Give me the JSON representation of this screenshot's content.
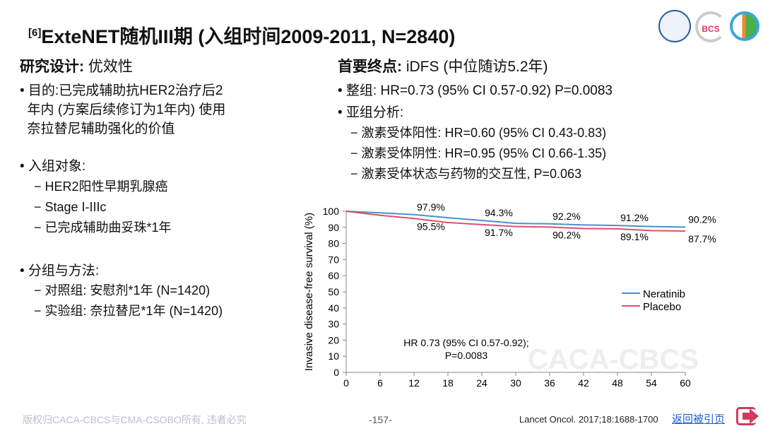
{
  "title": {
    "sup": "[6]",
    "text": "ExteNET随机III期 (入组时间2009-2011, N=2840)"
  },
  "left": {
    "heading_bold": "研究设计:",
    "heading_rest": " 优效性",
    "purpose": [
      "• 目的:已完成辅助抗HER2治疗后2",
      "  年内 (方案后续修订为1年内) 使用",
      "  奈拉替尼辅助强化的价值"
    ],
    "subjects": "• 入组对象:",
    "subjects_items": [
      "− HER2阳性早期乳腺癌",
      "− Stage I-IIIc",
      "− 已完成辅助曲妥珠*1年"
    ],
    "groups": "• 分组与方法:",
    "groups_items": [
      "− 对照组: 安慰剂*1年 (N=1420)",
      "− 实验组: 奈拉替尼*1年 (N=1420)"
    ]
  },
  "right": {
    "heading_bold": "首要终点:",
    "heading_rest": " iDFS (中位随访5.2年)",
    "overall": "• 整组: HR=0.73 (95% CI 0.57-0.92) P=0.0083",
    "subgroup": "• 亚组分析:",
    "subgroup_items": [
      "− 激素受体阳性: HR=0.60 (95% CI 0.43-0.83)",
      "− 激素受体阴性: HR=0.95 (95% CI 0.66-1.35)",
      "− 激素受体状态与药物的交互性, P=0.063"
    ]
  },
  "chart_data": {
    "type": "line",
    "ylabel": "Invasive disease-free survival (%)",
    "xlabel": "",
    "xlim": [
      0,
      60
    ],
    "ylim": [
      0,
      100
    ],
    "xticks": [
      0,
      6,
      12,
      18,
      24,
      30,
      36,
      42,
      48,
      54,
      60
    ],
    "yticks": [
      0,
      10,
      20,
      30,
      40,
      50,
      60,
      70,
      80,
      90,
      100
    ],
    "series": [
      {
        "name": "Neratinib",
        "color": "#4a90d0",
        "x": [
          0,
          6,
          12,
          18,
          24,
          30,
          36,
          42,
          48,
          54,
          60
        ],
        "values": [
          100,
          99,
          97.9,
          96,
          94.3,
          92.5,
          92.2,
          91.5,
          91.2,
          90.5,
          90.2
        ]
      },
      {
        "name": "Placebo",
        "color": "#e0506e",
        "x": [
          0,
          6,
          12,
          18,
          24,
          30,
          36,
          42,
          48,
          54,
          60
        ],
        "values": [
          100,
          97.5,
          95.5,
          93,
          91.7,
          90.5,
          90.2,
          89.3,
          89.1,
          88,
          87.7
        ]
      }
    ],
    "annotations_top": [
      {
        "x": 15,
        "y": 97.9,
        "label": "97.9%"
      },
      {
        "x": 27,
        "y": 94.3,
        "label": "94.3%"
      },
      {
        "x": 39,
        "y": 92.2,
        "label": "92.2%"
      },
      {
        "x": 51,
        "y": 91.2,
        "label": "91.2%"
      },
      {
        "x": 63,
        "y": 90.2,
        "label": "90.2%"
      }
    ],
    "annotations_bottom": [
      {
        "x": 15,
        "y": 95.5,
        "label": "95.5%"
      },
      {
        "x": 27,
        "y": 91.7,
        "label": "91.7%"
      },
      {
        "x": 39,
        "y": 90.2,
        "label": "90.2%"
      },
      {
        "x": 51,
        "y": 89.1,
        "label": "89.1%"
      },
      {
        "x": 63,
        "y": 87.7,
        "label": "87.7%"
      }
    ],
    "hr_text": [
      "HR 0.73 (95% CI 0.57-0.92);",
      "P=0.0083"
    ],
    "legend_position": "right",
    "watermark": "CACA-CBCS"
  },
  "logos": [
    "CACA",
    "BCS",
    "CSCO"
  ],
  "footer": {
    "copyright": "版权归CACA-CBCS与CMA-CSOBO所有, 违者必究",
    "page": "-157-",
    "reference": "Lancet Oncol. 2017;18:1688-1700",
    "back": "返回被引页"
  }
}
